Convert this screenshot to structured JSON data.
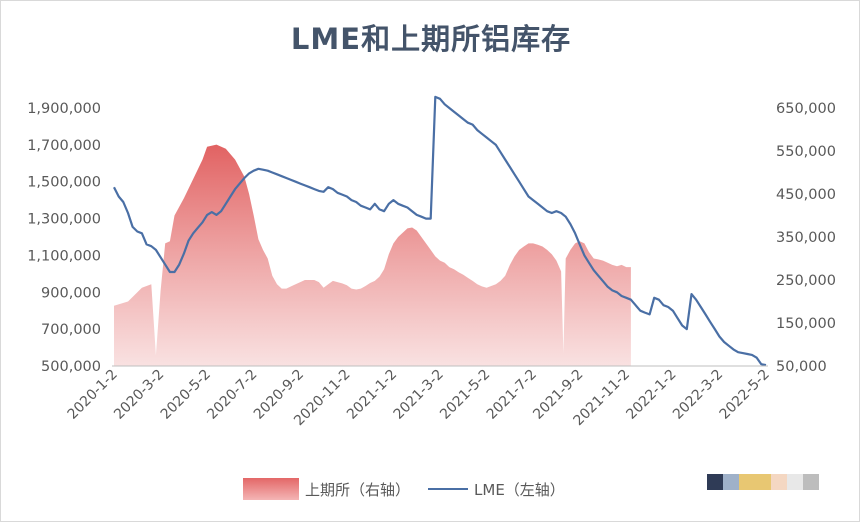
{
  "chart_data": {
    "type": "line",
    "title": "LME和上期所铝库存",
    "x_tick_labels": [
      "2020-1-2",
      "2020-3-2",
      "2020-5-2",
      "2020-7-2",
      "2020-9-2",
      "2020-11-2",
      "2021-1-2",
      "2021-3-2",
      "2021-5-2",
      "2021-7-2",
      "2021-9-2",
      "2021-11-2",
      "2022-1-2",
      "2022-3-2",
      "2022-5-2"
    ],
    "left_axis": {
      "label": "",
      "min": 500000,
      "max": 1900000,
      "ticks": [
        "500,000",
        "700,000",
        "900,000",
        "1,100,000",
        "1,300,000",
        "1,500,000",
        "1,700,000",
        "1,900,000"
      ]
    },
    "right_axis": {
      "label": "",
      "min": 50000,
      "max": 650000,
      "ticks": [
        "50,000",
        "150,000",
        "250,000",
        "350,000",
        "450,000",
        "550,000",
        "650,000"
      ]
    },
    "series": [
      {
        "name": "上期所（右轴）",
        "type": "area",
        "axis": "right",
        "color": "#e36767",
        "points": [
          [
            0,
            190000
          ],
          [
            3,
            200000
          ],
          [
            6,
            232000
          ],
          [
            8,
            240000
          ],
          [
            9,
            75000
          ],
          [
            10,
            225000
          ],
          [
            11,
            335000
          ],
          [
            12,
            340000
          ],
          [
            13,
            400000
          ],
          [
            15,
            440000
          ],
          [
            17,
            485000
          ],
          [
            19,
            530000
          ],
          [
            20,
            560000
          ],
          [
            22,
            565000
          ],
          [
            24,
            555000
          ],
          [
            26,
            530000
          ],
          [
            28,
            490000
          ],
          [
            29,
            450000
          ],
          [
            30,
            400000
          ],
          [
            31,
            345000
          ],
          [
            32,
            320000
          ],
          [
            33,
            300000
          ],
          [
            34,
            260000
          ],
          [
            35,
            240000
          ],
          [
            36,
            230000
          ],
          [
            37,
            230000
          ],
          [
            38,
            235000
          ],
          [
            39,
            240000
          ],
          [
            40,
            245000
          ],
          [
            41,
            250000
          ],
          [
            42,
            250000
          ],
          [
            43,
            250000
          ],
          [
            44,
            245000
          ],
          [
            45,
            232000
          ],
          [
            46,
            240000
          ],
          [
            47,
            248000
          ],
          [
            48,
            245000
          ],
          [
            49,
            242000
          ],
          [
            50,
            238000
          ],
          [
            51,
            230000
          ],
          [
            52,
            228000
          ],
          [
            53,
            230000
          ],
          [
            54,
            236000
          ],
          [
            55,
            243000
          ],
          [
            56,
            248000
          ],
          [
            57,
            258000
          ],
          [
            58,
            275000
          ],
          [
            59,
            310000
          ],
          [
            60,
            335000
          ],
          [
            61,
            350000
          ],
          [
            62,
            360000
          ],
          [
            63,
            370000
          ],
          [
            64,
            372000
          ],
          [
            65,
            365000
          ],
          [
            66,
            350000
          ],
          [
            67,
            335000
          ],
          [
            68,
            320000
          ],
          [
            69,
            305000
          ],
          [
            70,
            295000
          ],
          [
            71,
            290000
          ],
          [
            72,
            280000
          ],
          [
            73,
            275000
          ],
          [
            74,
            268000
          ],
          [
            75,
            262000
          ],
          [
            76,
            255000
          ],
          [
            77,
            248000
          ],
          [
            78,
            240000
          ],
          [
            79,
            235000
          ],
          [
            80,
            232000
          ],
          [
            81,
            236000
          ],
          [
            82,
            240000
          ],
          [
            83,
            248000
          ],
          [
            84,
            260000
          ],
          [
            85,
            285000
          ],
          [
            86,
            305000
          ],
          [
            87,
            320000
          ],
          [
            88,
            328000
          ],
          [
            89,
            335000
          ],
          [
            90,
            335000
          ],
          [
            91,
            332000
          ],
          [
            92,
            328000
          ],
          [
            93,
            320000
          ],
          [
            94,
            310000
          ],
          [
            95,
            295000
          ],
          [
            96,
            270000
          ],
          [
            96.5,
            80000
          ],
          [
            97,
            300000
          ],
          [
            98,
            320000
          ],
          [
            99,
            335000
          ],
          [
            100,
            340000
          ],
          [
            101,
            335000
          ],
          [
            102,
            315000
          ],
          [
            103,
            300000
          ],
          [
            104,
            298000
          ],
          [
            105,
            295000
          ],
          [
            106,
            290000
          ],
          [
            107,
            285000
          ],
          [
            108,
            282000
          ],
          [
            109,
            285000
          ],
          [
            110,
            280000
          ],
          [
            111,
            280000
          ]
        ]
      },
      {
        "name": "LME（左轴）",
        "type": "line",
        "axis": "left",
        "color": "#4a6fa5",
        "points": [
          [
            0,
            1470000
          ],
          [
            1,
            1420000
          ],
          [
            2,
            1390000
          ],
          [
            3,
            1330000
          ],
          [
            4,
            1255000
          ],
          [
            5,
            1230000
          ],
          [
            6,
            1220000
          ],
          [
            7,
            1160000
          ],
          [
            8,
            1150000
          ],
          [
            9,
            1130000
          ],
          [
            10,
            1090000
          ],
          [
            11,
            1050000
          ],
          [
            12,
            1010000
          ],
          [
            13,
            1010000
          ],
          [
            14,
            1050000
          ],
          [
            15,
            1110000
          ],
          [
            16,
            1180000
          ],
          [
            17,
            1220000
          ],
          [
            18,
            1250000
          ],
          [
            19,
            1280000
          ],
          [
            20,
            1320000
          ],
          [
            21,
            1335000
          ],
          [
            22,
            1320000
          ],
          [
            23,
            1340000
          ],
          [
            24,
            1380000
          ],
          [
            25,
            1420000
          ],
          [
            26,
            1460000
          ],
          [
            27,
            1490000
          ],
          [
            28,
            1520000
          ],
          [
            29,
            1545000
          ],
          [
            30,
            1560000
          ],
          [
            31,
            1570000
          ],
          [
            32,
            1565000
          ],
          [
            33,
            1560000
          ],
          [
            34,
            1550000
          ],
          [
            35,
            1540000
          ],
          [
            36,
            1530000
          ],
          [
            37,
            1520000
          ],
          [
            38,
            1510000
          ],
          [
            39,
            1500000
          ],
          [
            40,
            1490000
          ],
          [
            41,
            1480000
          ],
          [
            42,
            1470000
          ],
          [
            43,
            1460000
          ],
          [
            44,
            1450000
          ],
          [
            45,
            1445000
          ],
          [
            46,
            1470000
          ],
          [
            47,
            1460000
          ],
          [
            48,
            1440000
          ],
          [
            49,
            1430000
          ],
          [
            50,
            1420000
          ],
          [
            51,
            1400000
          ],
          [
            52,
            1390000
          ],
          [
            53,
            1370000
          ],
          [
            54,
            1360000
          ],
          [
            55,
            1350000
          ],
          [
            56,
            1380000
          ],
          [
            57,
            1350000
          ],
          [
            58,
            1340000
          ],
          [
            59,
            1380000
          ],
          [
            60,
            1400000
          ],
          [
            61,
            1380000
          ],
          [
            62,
            1370000
          ],
          [
            63,
            1360000
          ],
          [
            64,
            1340000
          ],
          [
            65,
            1320000
          ],
          [
            66,
            1310000
          ],
          [
            67,
            1300000
          ],
          [
            68,
            1300000
          ],
          [
            69,
            1960000
          ],
          [
            70,
            1950000
          ],
          [
            71,
            1920000
          ],
          [
            72,
            1900000
          ],
          [
            73,
            1880000
          ],
          [
            74,
            1860000
          ],
          [
            75,
            1840000
          ],
          [
            76,
            1820000
          ],
          [
            77,
            1810000
          ],
          [
            78,
            1780000
          ],
          [
            79,
            1760000
          ],
          [
            80,
            1740000
          ],
          [
            81,
            1720000
          ],
          [
            82,
            1700000
          ],
          [
            83,
            1660000
          ],
          [
            84,
            1620000
          ],
          [
            85,
            1580000
          ],
          [
            86,
            1540000
          ],
          [
            87,
            1500000
          ],
          [
            88,
            1460000
          ],
          [
            89,
            1420000
          ],
          [
            90,
            1400000
          ],
          [
            91,
            1380000
          ],
          [
            92,
            1360000
          ],
          [
            93,
            1340000
          ],
          [
            94,
            1330000
          ],
          [
            95,
            1340000
          ],
          [
            96,
            1330000
          ],
          [
            97,
            1310000
          ],
          [
            98,
            1270000
          ],
          [
            99,
            1220000
          ],
          [
            100,
            1160000
          ],
          [
            101,
            1100000
          ],
          [
            102,
            1060000
          ],
          [
            103,
            1020000
          ],
          [
            104,
            990000
          ],
          [
            105,
            960000
          ],
          [
            106,
            930000
          ],
          [
            107,
            910000
          ],
          [
            108,
            900000
          ],
          [
            109,
            880000
          ],
          [
            110,
            870000
          ],
          [
            111,
            860000
          ],
          [
            112,
            830000
          ],
          [
            113,
            800000
          ],
          [
            114,
            790000
          ],
          [
            115,
            780000
          ],
          [
            116,
            870000
          ],
          [
            117,
            860000
          ],
          [
            118,
            830000
          ],
          [
            119,
            820000
          ],
          [
            120,
            800000
          ],
          [
            121,
            760000
          ],
          [
            122,
            720000
          ],
          [
            123,
            700000
          ],
          [
            124,
            890000
          ],
          [
            125,
            860000
          ],
          [
            126,
            820000
          ],
          [
            127,
            780000
          ],
          [
            128,
            740000
          ],
          [
            129,
            700000
          ],
          [
            130,
            660000
          ],
          [
            131,
            630000
          ],
          [
            132,
            610000
          ],
          [
            133,
            590000
          ],
          [
            134,
            575000
          ],
          [
            135,
            570000
          ],
          [
            136,
            565000
          ],
          [
            137,
            560000
          ],
          [
            138,
            545000
          ],
          [
            139,
            510000
          ],
          [
            140,
            505000
          ]
        ]
      }
    ],
    "legend": {
      "placement": "bottom"
    },
    "grid": false
  },
  "legend_items": [
    {
      "label": "上期所（右轴）",
      "color": "#e36767"
    },
    {
      "label": "LME（左轴）",
      "color": "#4a6fa5"
    }
  ]
}
